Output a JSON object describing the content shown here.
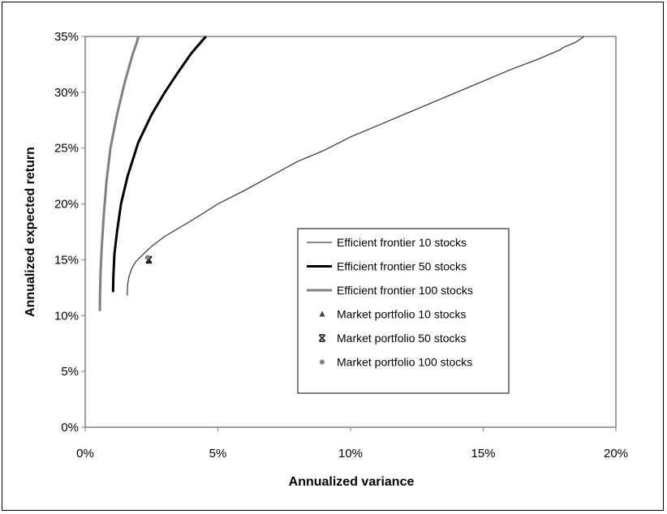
{
  "chart_data": {
    "type": "line",
    "title": "",
    "xlabel": "Annualized variance",
    "ylabel": "Annualized expected  return",
    "xlim": [
      0,
      0.2
    ],
    "ylim": [
      0,
      0.35
    ],
    "x_ticks": [
      "0%",
      "5%",
      "10%",
      "15%",
      "20%"
    ],
    "y_ticks": [
      "0%",
      "5%",
      "10%",
      "15%",
      "20%",
      "25%",
      "30%",
      "35%"
    ],
    "grid": false,
    "legend_position": "center-right",
    "series": [
      {
        "name": "Efficient frontier 10 stocks",
        "kind": "line",
        "color": "#404040",
        "points": [
          [
            0.0158,
            0.118
          ],
          [
            0.016,
            0.128
          ],
          [
            0.0165,
            0.135
          ],
          [
            0.0175,
            0.142
          ],
          [
            0.019,
            0.148
          ],
          [
            0.021,
            0.153
          ],
          [
            0.025,
            0.162
          ],
          [
            0.03,
            0.171
          ],
          [
            0.04,
            0.185
          ],
          [
            0.05,
            0.2
          ],
          [
            0.06,
            0.212
          ],
          [
            0.07,
            0.225
          ],
          [
            0.08,
            0.238
          ],
          [
            0.09,
            0.248
          ],
          [
            0.1,
            0.26
          ],
          [
            0.11,
            0.27
          ],
          [
            0.12,
            0.28
          ],
          [
            0.13,
            0.29
          ],
          [
            0.14,
            0.3
          ],
          [
            0.15,
            0.31
          ],
          [
            0.16,
            0.32
          ],
          [
            0.17,
            0.329
          ],
          [
            0.179,
            0.338
          ],
          [
            0.18,
            0.34
          ],
          [
            0.185,
            0.345
          ],
          [
            0.188,
            0.35
          ]
        ]
      },
      {
        "name": "Efficient frontier 50 stocks",
        "kind": "line",
        "color": "#000000",
        "points": [
          [
            0.0105,
            0.121
          ],
          [
            0.0106,
            0.135
          ],
          [
            0.011,
            0.155
          ],
          [
            0.012,
            0.175
          ],
          [
            0.0135,
            0.2
          ],
          [
            0.016,
            0.225
          ],
          [
            0.02,
            0.255
          ],
          [
            0.025,
            0.28
          ],
          [
            0.03,
            0.3
          ],
          [
            0.035,
            0.318
          ],
          [
            0.04,
            0.335
          ],
          [
            0.044,
            0.346
          ],
          [
            0.0455,
            0.35
          ]
        ]
      },
      {
        "name": "Efficient frontier 100 stocks",
        "kind": "line",
        "color": "#808080",
        "points": [
          [
            0.0055,
            0.104
          ],
          [
            0.0056,
            0.12
          ],
          [
            0.0058,
            0.14
          ],
          [
            0.0062,
            0.16
          ],
          [
            0.007,
            0.19
          ],
          [
            0.008,
            0.22
          ],
          [
            0.0095,
            0.25
          ],
          [
            0.012,
            0.28
          ],
          [
            0.015,
            0.31
          ],
          [
            0.018,
            0.335
          ],
          [
            0.0195,
            0.345
          ],
          [
            0.02,
            0.35
          ]
        ]
      },
      {
        "name": "Market portfolio 10 stocks",
        "kind": "marker",
        "marker": "triangle",
        "color": "#404040",
        "points": [
          [
            0.024,
            0.149
          ]
        ]
      },
      {
        "name": "Market portfolio 50 stocks",
        "kind": "marker",
        "marker": "star",
        "color": "#000000",
        "points": [
          [
            0.024,
            0.15
          ]
        ]
      },
      {
        "name": "Market portfolio 100 stocks",
        "kind": "marker",
        "marker": "circle",
        "color": "#808080",
        "points": [
          [
            0.0235,
            0.152
          ]
        ]
      }
    ]
  }
}
